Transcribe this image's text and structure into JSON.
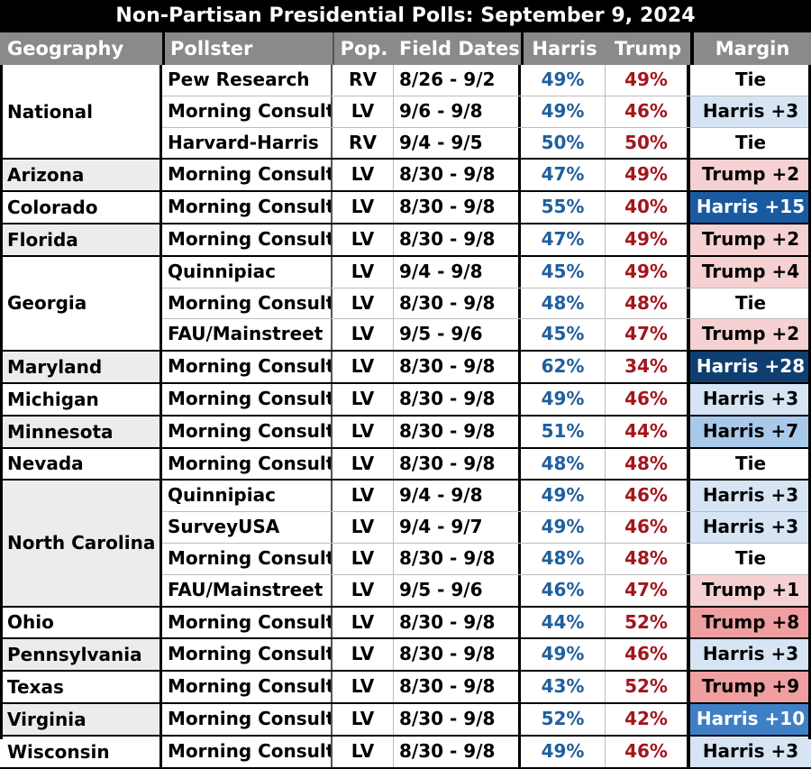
{
  "title": "Non-Partisan Presidential Polls: September 9, 2024",
  "headers": {
    "geography": "Geography",
    "pollster": "Pollster",
    "pop": "Pop.",
    "field_dates": "Field Dates",
    "harris": "Harris",
    "trump": "Trump",
    "margin": "Margin"
  },
  "colors": {
    "tie": "#ffffff",
    "harris_light": "#d6e4f3",
    "harris_medium": "#a9c9ea",
    "harris_strong": "#3f7fc6",
    "harris_dark": "#1a5aa0",
    "harris_darkest": "#0f3e70",
    "trump_light": "#f5d1d1",
    "trump_medium": "#ef9f9f"
  },
  "groups": [
    {
      "geography": "National",
      "alt": false,
      "rows": [
        {
          "pollster": "Pew Research",
          "pop": "RV",
          "dates": "8/26 - 9/2",
          "harris": "49%",
          "trump": "49%",
          "margin": "Tie",
          "shade": "tie"
        },
        {
          "pollster": "Morning Consult",
          "pop": "LV",
          "dates": "9/6 - 9/8",
          "harris": "49%",
          "trump": "46%",
          "margin": "Harris +3",
          "shade": "harris_light"
        },
        {
          "pollster": "Harvard-Harris",
          "pop": "RV",
          "dates": "9/4 - 9/5",
          "harris": "50%",
          "trump": "50%",
          "margin": "Tie",
          "shade": "tie"
        }
      ]
    },
    {
      "geography": "Arizona",
      "alt": true,
      "rows": [
        {
          "pollster": "Morning Consult",
          "pop": "LV",
          "dates": "8/30 - 9/8",
          "harris": "47%",
          "trump": "49%",
          "margin": "Trump +2",
          "shade": "trump_light"
        }
      ]
    },
    {
      "geography": "Colorado",
      "alt": false,
      "rows": [
        {
          "pollster": "Morning Consult",
          "pop": "LV",
          "dates": "8/30 - 9/8",
          "harris": "55%",
          "trump": "40%",
          "margin": "Harris +15",
          "shade": "harris_dark"
        }
      ]
    },
    {
      "geography": "Florida",
      "alt": true,
      "rows": [
        {
          "pollster": "Morning Consult",
          "pop": "LV",
          "dates": "8/30 - 9/8",
          "harris": "47%",
          "trump": "49%",
          "margin": "Trump +2",
          "shade": "trump_light"
        }
      ]
    },
    {
      "geography": "Georgia",
      "alt": false,
      "rows": [
        {
          "pollster": "Quinnipiac",
          "pop": "LV",
          "dates": "9/4 - 9/8",
          "harris": "45%",
          "trump": "49%",
          "margin": "Trump +4",
          "shade": "trump_light"
        },
        {
          "pollster": "Morning Consult",
          "pop": "LV",
          "dates": "8/30 - 9/8",
          "harris": "48%",
          "trump": "48%",
          "margin": "Tie",
          "shade": "tie"
        },
        {
          "pollster": "FAU/Mainstreet",
          "pop": "LV",
          "dates": "9/5 - 9/6",
          "harris": "45%",
          "trump": "47%",
          "margin": "Trump +2",
          "shade": "trump_light"
        }
      ]
    },
    {
      "geography": "Maryland",
      "alt": true,
      "rows": [
        {
          "pollster": "Morning Consult",
          "pop": "LV",
          "dates": "8/30 - 9/8",
          "harris": "62%",
          "trump": "34%",
          "margin": "Harris +28",
          "shade": "harris_darkest"
        }
      ]
    },
    {
      "geography": "Michigan",
      "alt": false,
      "rows": [
        {
          "pollster": "Morning Consult",
          "pop": "LV",
          "dates": "8/30 - 9/8",
          "harris": "49%",
          "trump": "46%",
          "margin": "Harris +3",
          "shade": "harris_light"
        }
      ]
    },
    {
      "geography": "Minnesota",
      "alt": true,
      "rows": [
        {
          "pollster": "Morning Consult",
          "pop": "LV",
          "dates": "8/30 - 9/8",
          "harris": "51%",
          "trump": "44%",
          "margin": "Harris +7",
          "shade": "harris_medium"
        }
      ]
    },
    {
      "geography": "Nevada",
      "alt": false,
      "rows": [
        {
          "pollster": "Morning Consult",
          "pop": "LV",
          "dates": "8/30 - 9/8",
          "harris": "48%",
          "trump": "48%",
          "margin": "Tie",
          "shade": "tie"
        }
      ]
    },
    {
      "geography": "North Carolina",
      "alt": true,
      "rows": [
        {
          "pollster": "Quinnipiac",
          "pop": "LV",
          "dates": "9/4 - 9/8",
          "harris": "49%",
          "trump": "46%",
          "margin": "Harris +3",
          "shade": "harris_light"
        },
        {
          "pollster": "SurveyUSA",
          "pop": "LV",
          "dates": "9/4 - 9/7",
          "harris": "49%",
          "trump": "46%",
          "margin": "Harris +3",
          "shade": "harris_light"
        },
        {
          "pollster": "Morning Consult",
          "pop": "LV",
          "dates": "8/30 - 9/8",
          "harris": "48%",
          "trump": "48%",
          "margin": "Tie",
          "shade": "tie"
        },
        {
          "pollster": "FAU/Mainstreet",
          "pop": "LV",
          "dates": "9/5 - 9/6",
          "harris": "46%",
          "trump": "47%",
          "margin": "Trump +1",
          "shade": "trump_light"
        }
      ]
    },
    {
      "geography": "Ohio",
      "alt": false,
      "rows": [
        {
          "pollster": "Morning Consult",
          "pop": "LV",
          "dates": "8/30 - 9/8",
          "harris": "44%",
          "trump": "52%",
          "margin": "Trump +8",
          "shade": "trump_medium"
        }
      ]
    },
    {
      "geography": "Pennsylvania",
      "alt": true,
      "rows": [
        {
          "pollster": "Morning Consult",
          "pop": "LV",
          "dates": "8/30 - 9/8",
          "harris": "49%",
          "trump": "46%",
          "margin": "Harris +3",
          "shade": "harris_light"
        }
      ]
    },
    {
      "geography": "Texas",
      "alt": false,
      "rows": [
        {
          "pollster": "Morning Consult",
          "pop": "LV",
          "dates": "8/30 - 9/8",
          "harris": "43%",
          "trump": "52%",
          "margin": "Trump +9",
          "shade": "trump_medium"
        }
      ]
    },
    {
      "geography": "Virginia",
      "alt": true,
      "rows": [
        {
          "pollster": "Morning Consult",
          "pop": "LV",
          "dates": "8/30 - 9/8",
          "harris": "52%",
          "trump": "42%",
          "margin": "Harris +10",
          "shade": "harris_strong"
        }
      ]
    },
    {
      "geography": "Wisconsin",
      "alt": false,
      "rows": [
        {
          "pollster": "Morning Consult",
          "pop": "LV",
          "dates": "8/30 - 9/8",
          "harris": "49%",
          "trump": "46%",
          "margin": "Harris +3",
          "shade": "harris_light"
        }
      ]
    }
  ]
}
